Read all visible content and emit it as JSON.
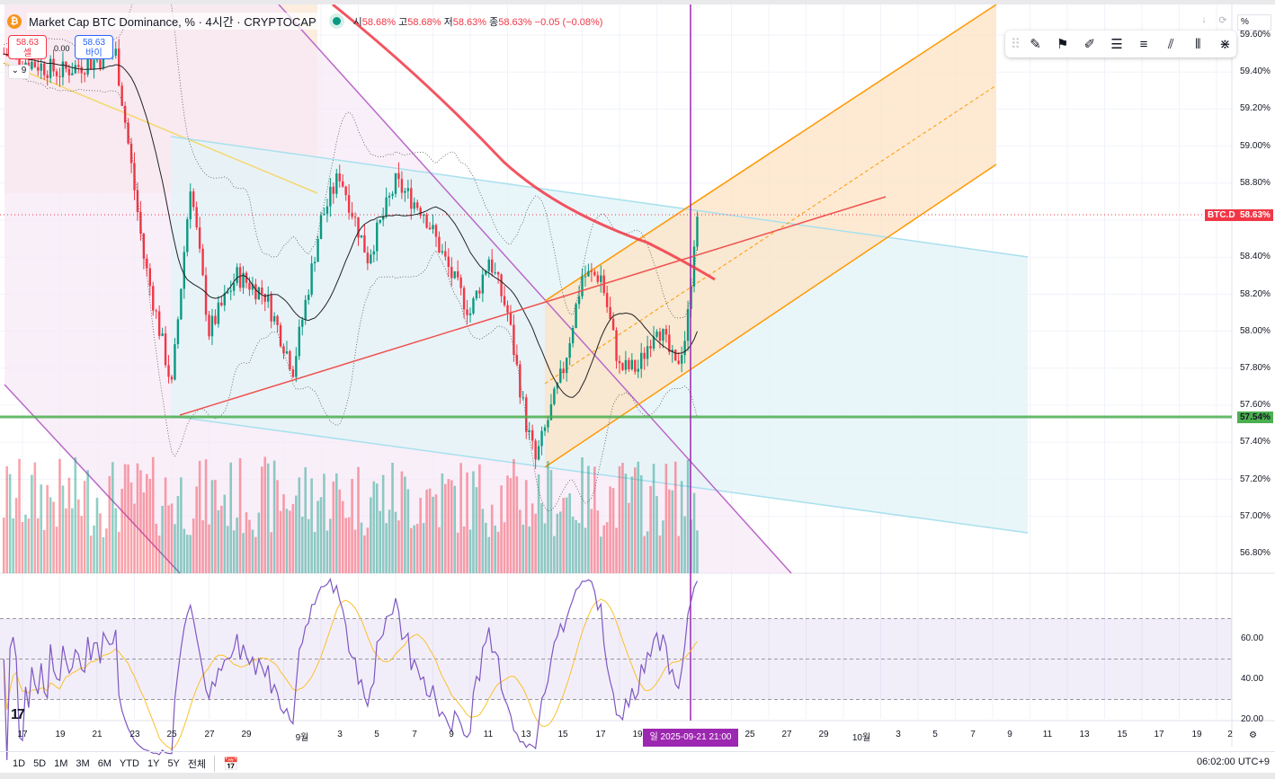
{
  "header": {
    "symbol_icon": "bitcoin-icon",
    "title": "Market Cap BTC Dominance, % · 4시간 · CRYPTOCAP",
    "status": "market-open",
    "ohlc": [
      {
        "k": "시",
        "v": "58.68%"
      },
      {
        "k": "고",
        "v": "58.68%"
      },
      {
        "k": "저",
        "v": "58.63%"
      },
      {
        "k": "종",
        "v": "58.63%"
      }
    ],
    "change": "−0.05 (−0.08%)"
  },
  "trade": {
    "sell_price": "58.63",
    "sell_label": "셀",
    "spread": "0.00",
    "buy_price": "58.63",
    "buy_label": "바이"
  },
  "indicators_count": "9",
  "price_axis": {
    "unit_button": "%",
    "ticks": [
      "59.60%",
      "59.40%",
      "59.20%",
      "59.00%",
      "58.80%",
      "58.40%",
      "58.20%",
      "58.00%",
      "57.80%",
      "57.60%",
      "57.40%",
      "57.20%",
      "57.00%",
      "56.80%"
    ],
    "last_label": "BTC.D",
    "last_value": "58.63%",
    "line_value": "57.54%"
  },
  "rsi_axis": {
    "ticks": [
      "60.00",
      "40.00",
      "20.00"
    ]
  },
  "time_axis": {
    "ticks": [
      "17",
      "19",
      "21",
      "23",
      "25",
      "27",
      "29",
      "9월",
      "3",
      "5",
      "7",
      "9",
      "11",
      "13",
      "15",
      "17",
      "19",
      "25",
      "27",
      "29",
      "10월",
      "3",
      "5",
      "7",
      "9",
      "11",
      "13",
      "15",
      "17",
      "19",
      "2"
    ],
    "cursor": "일 2025-09-21   21:00"
  },
  "ranges": [
    "1D",
    "5D",
    "1M",
    "3M",
    "6M",
    "YTD",
    "1Y",
    "5Y",
    "전체"
  ],
  "clock": "06:02:00 UTC+9",
  "colors": {
    "up": "#089981",
    "down": "#f23645",
    "accent": "#9c27b0",
    "green_line": "#4caf50"
  },
  "chart_data": {
    "type": "candlestick",
    "title": "Market Cap BTC Dominance, %",
    "interval": "4h",
    "close_path": [
      [
        -1,
        59.5
      ],
      [
        2,
        59.4
      ],
      [
        5,
        59.5
      ],
      [
        6.5,
        58.4
      ],
      [
        8,
        57.7
      ],
      [
        9,
        58.8
      ],
      [
        10,
        58.0
      ],
      [
        11.5,
        58.3
      ],
      [
        13,
        58.2
      ],
      [
        14.5,
        57.8
      ],
      [
        16,
        58.6
      ],
      [
        17,
        58.85
      ],
      [
        18.5,
        58.4
      ],
      [
        20,
        58.8
      ],
      [
        21.5,
        58.65
      ],
      [
        23,
        58.3
      ],
      [
        24,
        58.1
      ],
      [
        25,
        58.4
      ],
      [
        26,
        58.1
      ],
      [
        27,
        57.5
      ],
      [
        27.5,
        57.3
      ],
      [
        29,
        57.8
      ],
      [
        30,
        58.3
      ],
      [
        31,
        58.3
      ],
      [
        32,
        57.8
      ],
      [
        33,
        57.8
      ],
      [
        34,
        58.05
      ],
      [
        35,
        57.8
      ],
      [
        35.6,
        58.0
      ],
      [
        36,
        58.5
      ],
      [
        36.3,
        58.63
      ]
    ],
    "x_note": "days since Aug 17",
    "ylim": [
      56.75,
      59.65
    ],
    "rsi_levels": [
      70,
      50,
      30
    ]
  }
}
